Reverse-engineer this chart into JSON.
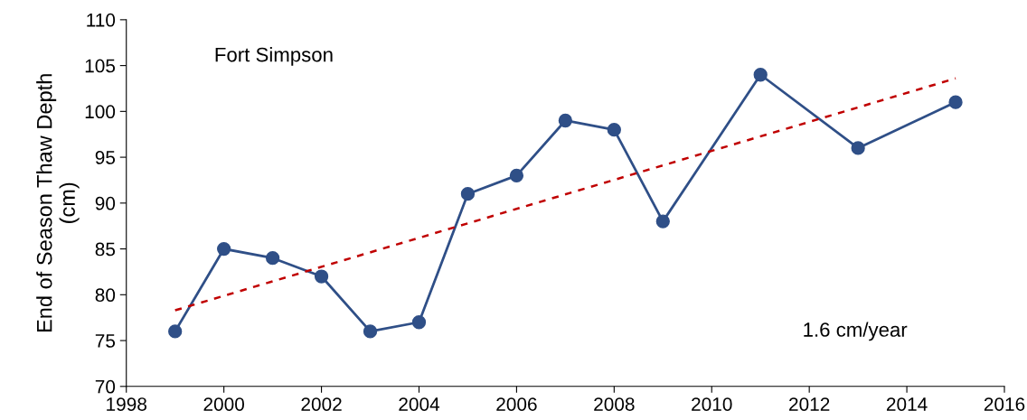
{
  "chart_data": {
    "type": "line",
    "ylabel": "End of Season Thaw Depth\n(cm)",
    "annotations": [
      "Fort Simpson",
      "1.6 cm/year"
    ],
    "x": [
      1999,
      2000,
      2001,
      2002,
      2003,
      2004,
      2005,
      2006,
      2007,
      2008,
      2009,
      2011,
      2013,
      2015
    ],
    "series": [
      {
        "color": "#2f4f87",
        "marker": "circle",
        "line_style": "solid",
        "values": [
          76,
          85,
          84,
          82,
          76,
          77,
          91,
          93,
          99,
          98,
          88,
          104,
          96,
          101
        ]
      },
      {
        "type": "line",
        "color": "#c00000",
        "marker": "none",
        "line_style": "dashed",
        "x": [
          1999,
          2015
        ],
        "values": [
          78.3,
          103.6
        ]
      }
    ],
    "xlim": [
      1998,
      2016
    ],
    "xticks": [
      1998,
      2000,
      2002,
      2004,
      2006,
      2008,
      2010,
      2012,
      2014,
      2016
    ],
    "ylim": [
      70,
      110
    ],
    "yticks": [
      70,
      75,
      80,
      85,
      90,
      95,
      100,
      105,
      110
    ],
    "grid": false,
    "legend": false
  }
}
